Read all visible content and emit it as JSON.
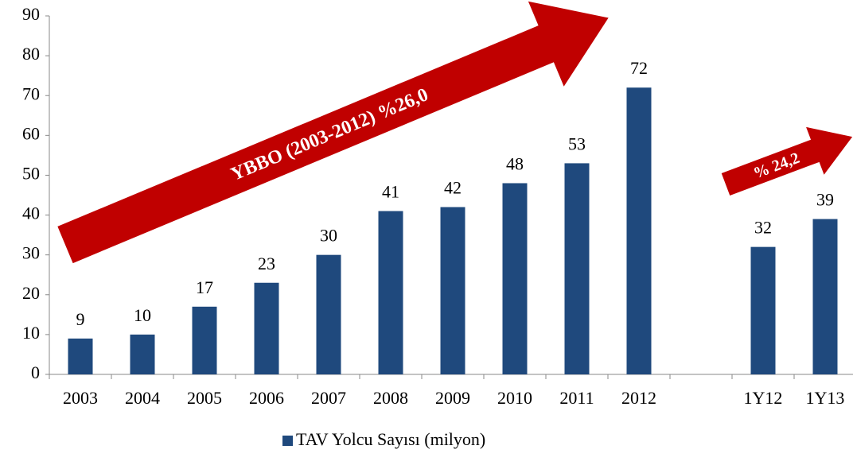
{
  "chart_data": {
    "type": "bar",
    "categories": [
      "2003",
      "2004",
      "2005",
      "2006",
      "2007",
      "2008",
      "2009",
      "2010",
      "2011",
      "2012",
      null,
      "1Y12",
      "1Y13"
    ],
    "series": [
      {
        "name": "TAV Yolcu Sayısı (milyon)",
        "color": "#1f497d",
        "values": [
          9,
          10,
          17,
          23,
          30,
          41,
          42,
          48,
          53,
          72,
          null,
          32,
          39
        ]
      }
    ],
    "ylim": [
      0,
      90
    ],
    "yticks": [
      0,
      10,
      20,
      30,
      40,
      50,
      60,
      70,
      80,
      90
    ],
    "grid": false,
    "legend": "bottom",
    "annotations": [
      "YBBO (2003-2012) %26,0",
      "% 24,2"
    ]
  }
}
